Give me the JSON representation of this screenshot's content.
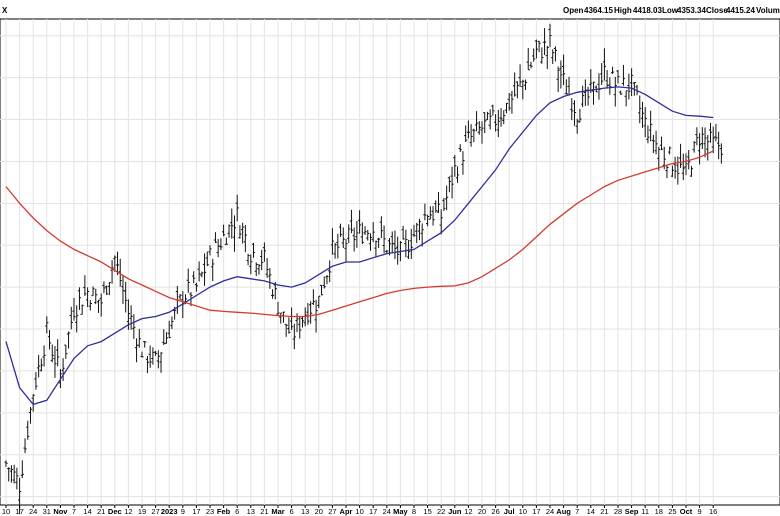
{
  "header": {
    "symbol_fragment": "X",
    "open_label": "Open",
    "open": "4364.15",
    "high_label": "High",
    "high": "4418.03",
    "low_label": "Low",
    "low": "4353.34",
    "close_label": "Close",
    "close": "4415.24",
    "volume_label": "Volume"
  },
  "chart_data": {
    "type": "ohlc",
    "title": "",
    "xlabel": "",
    "ylabel": "",
    "grid": true,
    "ylim": [
      3480,
      4640
    ],
    "x_tick_labels": [
      {
        "label": "10",
        "bold": false
      },
      {
        "label": "17",
        "bold": false
      },
      {
        "label": "24",
        "bold": false
      },
      {
        "label": "31",
        "bold": false
      },
      {
        "label": "Nov",
        "bold": true
      },
      {
        "label": "7",
        "bold": false
      },
      {
        "label": "14",
        "bold": false
      },
      {
        "label": "21",
        "bold": false
      },
      {
        "label": "Dec",
        "bold": true
      },
      {
        "label": "12",
        "bold": false
      },
      {
        "label": "19",
        "bold": false
      },
      {
        "label": "27",
        "bold": false
      },
      {
        "label": "2023",
        "bold": true
      },
      {
        "label": "9",
        "bold": false
      },
      {
        "label": "17",
        "bold": false
      },
      {
        "label": "23",
        "bold": false
      },
      {
        "label": "Feb",
        "bold": true
      },
      {
        "label": "6",
        "bold": false
      },
      {
        "label": "13",
        "bold": false
      },
      {
        "label": "21",
        "bold": false
      },
      {
        "label": "Mar",
        "bold": true
      },
      {
        "label": "6",
        "bold": false
      },
      {
        "label": "13",
        "bold": false
      },
      {
        "label": "20",
        "bold": false
      },
      {
        "label": "27",
        "bold": false
      },
      {
        "label": "Apr",
        "bold": true
      },
      {
        "label": "10",
        "bold": false
      },
      {
        "label": "17",
        "bold": false
      },
      {
        "label": "24",
        "bold": false
      },
      {
        "label": "May",
        "bold": true
      },
      {
        "label": "8",
        "bold": false
      },
      {
        "label": "15",
        "bold": false
      },
      {
        "label": "22",
        "bold": false
      },
      {
        "label": "Jun",
        "bold": true
      },
      {
        "label": "12",
        "bold": false
      },
      {
        "label": "20",
        "bold": false
      },
      {
        "label": "26",
        "bold": false
      },
      {
        "label": "Jul",
        "bold": true
      },
      {
        "label": "10",
        "bold": false
      },
      {
        "label": "17",
        "bold": false
      },
      {
        "label": "24",
        "bold": false
      },
      {
        "label": "Aug",
        "bold": true
      },
      {
        "label": "7",
        "bold": false
      },
      {
        "label": "14",
        "bold": false
      },
      {
        "label": "21",
        "bold": false
      },
      {
        "label": "28",
        "bold": false
      },
      {
        "label": "Sep",
        "bold": true
      },
      {
        "label": "11",
        "bold": false
      },
      {
        "label": "18",
        "bold": false
      },
      {
        "label": "25",
        "bold": false
      },
      {
        "label": "Oct",
        "bold": true
      },
      {
        "label": "9",
        "bold": false
      },
      {
        "label": "16",
        "bold": false
      }
    ],
    "weekly_closes": [
      3580,
      3530,
      3750,
      3890,
      3790,
      3950,
      3990,
      3965,
      4070,
      3940,
      3850,
      3820,
      3900,
      3980,
      4000,
      4070,
      4120,
      4170,
      4085,
      4065,
      3960,
      3880,
      3940,
      3970,
      4085,
      4110,
      4130,
      4140,
      4100,
      4080,
      4125,
      4180,
      4170,
      4280,
      4350,
      4380,
      4400,
      4440,
      4490,
      4560,
      4580,
      4490,
      4420,
      4460,
      4510,
      4480,
      4480,
      4390,
      4330,
      4300,
      4270,
      4360,
      4340
    ],
    "series": [
      {
        "name": "",
        "color": "#2e2e9c",
        "role": "short-moving-average",
        "values": [
          3870,
          3760,
          3720,
          3730,
          3780,
          3830,
          3860,
          3870,
          3890,
          3910,
          3925,
          3930,
          3940,
          3960,
          3980,
          4000,
          4015,
          4025,
          4020,
          4015,
          4005,
          4000,
          4010,
          4030,
          4050,
          4060,
          4060,
          4070,
          4080,
          4085,
          4090,
          4110,
          4130,
          4160,
          4200,
          4240,
          4280,
          4330,
          4370,
          4410,
          4440,
          4455,
          4465,
          4470,
          4475,
          4478,
          4475,
          4460,
          4440,
          4420,
          4410,
          4408,
          4405
        ]
      },
      {
        "name": "",
        "color": "#d63a2f",
        "role": "long-moving-average",
        "values": [
          4240,
          4200,
          4165,
          4135,
          4110,
          4090,
          4075,
          4060,
          4040,
          4020,
          4005,
          3990,
          3975,
          3965,
          3955,
          3945,
          3942,
          3940,
          3938,
          3935,
          3932,
          3930,
          3930,
          3935,
          3945,
          3955,
          3965,
          3975,
          3985,
          3992,
          3997,
          4000,
          4002,
          4003,
          4010,
          4025,
          4045,
          4065,
          4090,
          4120,
          4150,
          4175,
          4200,
          4220,
          4240,
          4255,
          4265,
          4275,
          4285,
          4295,
          4300,
          4310,
          4325
        ]
      }
    ]
  }
}
